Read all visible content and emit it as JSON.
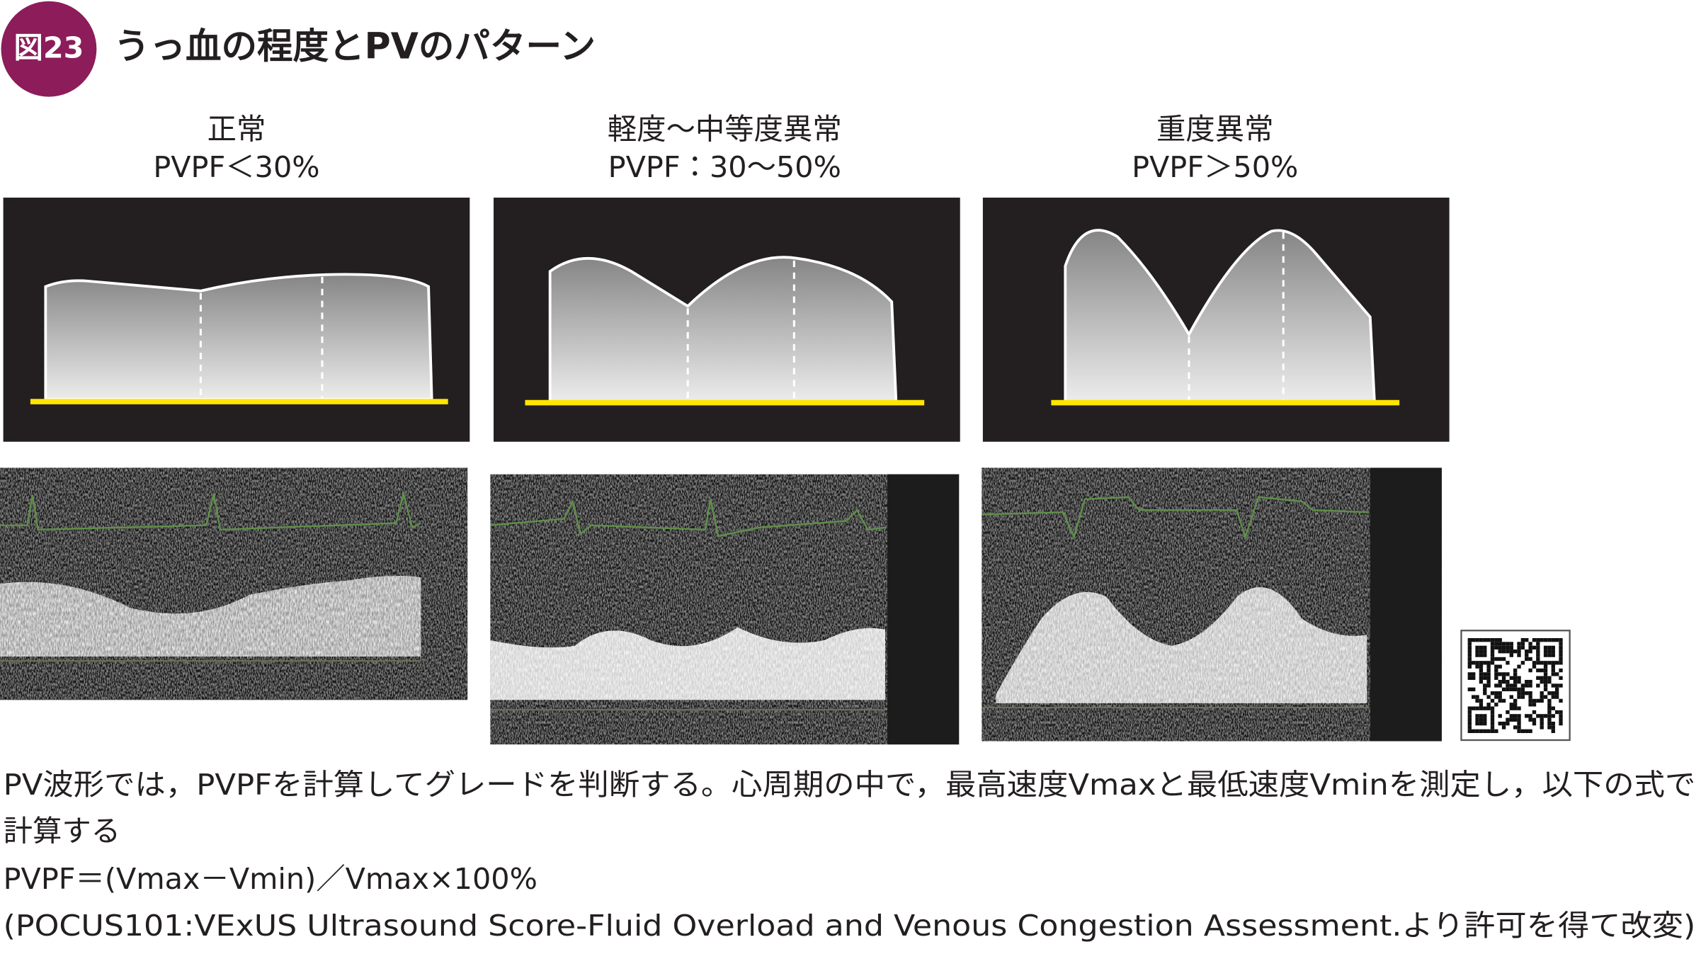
{
  "header": {
    "badge": "図23",
    "title": "うっ血の程度とPVのパターン"
  },
  "panels": [
    {
      "label": "正常",
      "criterion": "PVPF＜30%"
    },
    {
      "label": "軽度～中等度異常",
      "criterion": "PVPF：30～50%"
    },
    {
      "label": "重度異常",
      "criterion": "PVPF＞50%"
    }
  ],
  "caption": [
    "PV波形では，PVPFを計算してグレードを判断する。心周期の中で，最高速度Vmaxと最低速度Vminを測定し，以下の式で",
    "計算する",
    "PVPF＝(Vmax－Vmin)／Vmax×100%",
    "(POCUS101:VExUS Ultrasound Score-Fluid Overload and Venous Congestion Assessment.より許可を得て改変)"
  ]
}
